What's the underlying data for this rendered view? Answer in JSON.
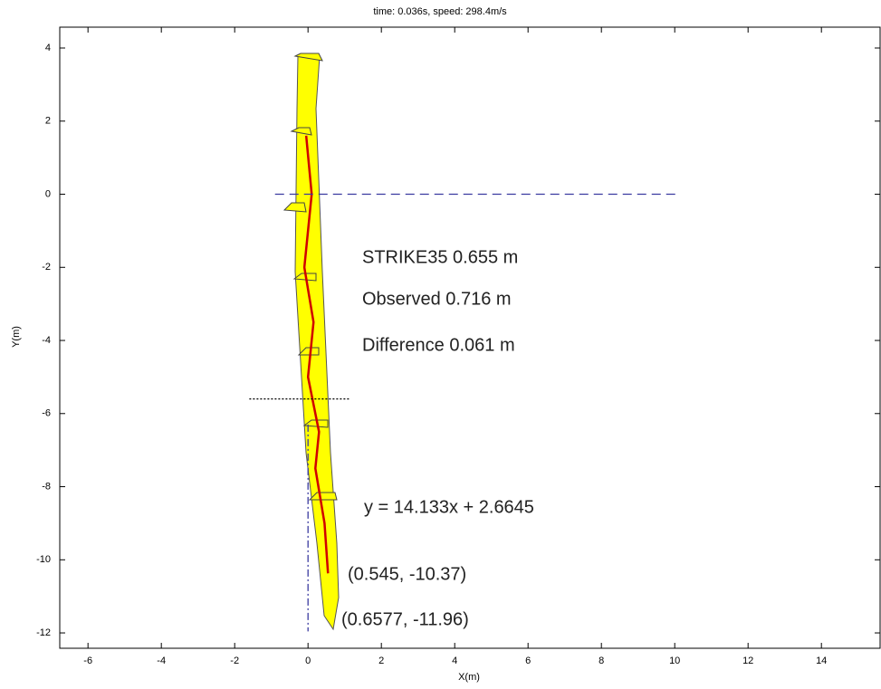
{
  "chart_data": {
    "type": "line",
    "title": "time:  0.036s,  speed:  298.4m/s",
    "x_label": "X(m)",
    "y_label": "Y(m)",
    "xlim": [
      -6.77,
      15.6
    ],
    "ylim": [
      -12.42,
      4.57
    ],
    "xticks": [
      -6,
      -4,
      -2,
      0,
      2,
      4,
      6,
      8,
      10,
      12,
      14
    ],
    "yticks": [
      -12,
      -10,
      -8,
      -6,
      -4,
      -2,
      0,
      2,
      4
    ],
    "series": [
      {
        "color": "#d00000",
        "dash": "solid",
        "x": [
          -0.05,
          0.1,
          -0.1,
          0.15,
          0.0,
          0.3,
          0.2,
          0.45,
          0.545
        ],
        "values": [
          1.6,
          0.0,
          -2.0,
          -3.5,
          -5.0,
          -6.5,
          -7.5,
          -9.0,
          -10.37
        ]
      },
      {
        "color": "#3a3aa0",
        "dash": "10,6",
        "x": [
          -0.9,
          10.1
        ],
        "values": [
          0,
          0
        ]
      },
      {
        "color": "#000000",
        "dash": "2,2",
        "x": [
          -1.6,
          1.15
        ],
        "values": [
          -5.6,
          -5.6
        ]
      },
      {
        "color": "#3a3aa0",
        "dash": "8,3,2,3",
        "x": [
          0,
          0
        ],
        "values": [
          -6.3,
          -11.96
        ]
      }
    ],
    "annotations": [
      "STRIKE35 0.655 m",
      "Observed 0.716 m",
      "Difference 0.061 m",
      "y = 14.133x + 2.6645",
      "(0.545, -10.37)",
      "(0.6577, -11.96)"
    ]
  }
}
